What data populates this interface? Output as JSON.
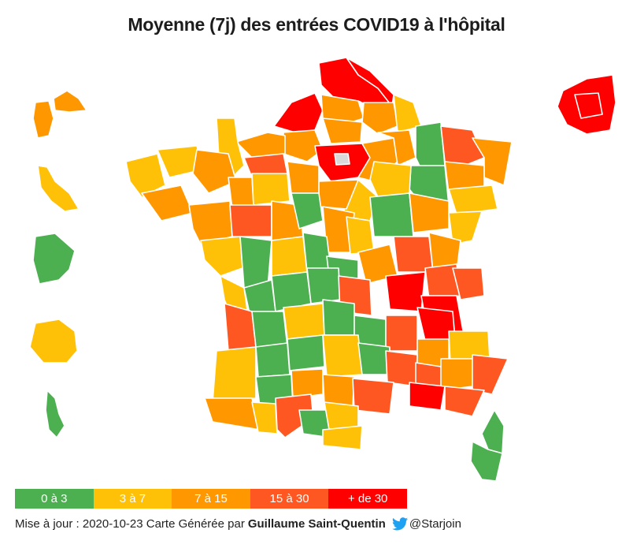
{
  "title": "Moyenne (7j) des entrées COVID19 à l'hôpital",
  "colors": {
    "c0": "#4caf50",
    "c1": "#ffc107",
    "c2": "#ff9800",
    "c3": "#ff5722",
    "c4": "#ff0000",
    "paris": "#d9d9d9"
  },
  "legend": [
    {
      "label": "0 à 3",
      "color": "#4caf50"
    },
    {
      "label": "3 à 7",
      "color": "#ffc107"
    },
    {
      "label": "7 à 15",
      "color": "#ff9800"
    },
    {
      "label": "15 à 30",
      "color": "#ff5722"
    },
    {
      "label": "+ de 30",
      "color": "#ff0000"
    }
  ],
  "footer": {
    "update_text": "Mise à jour : 2020-10-23 Carte Générée par",
    "author": "Guillaume Saint-Quentin",
    "twitter_icon": "twitter-bird-icon",
    "handle": "@Starjoin"
  }
}
